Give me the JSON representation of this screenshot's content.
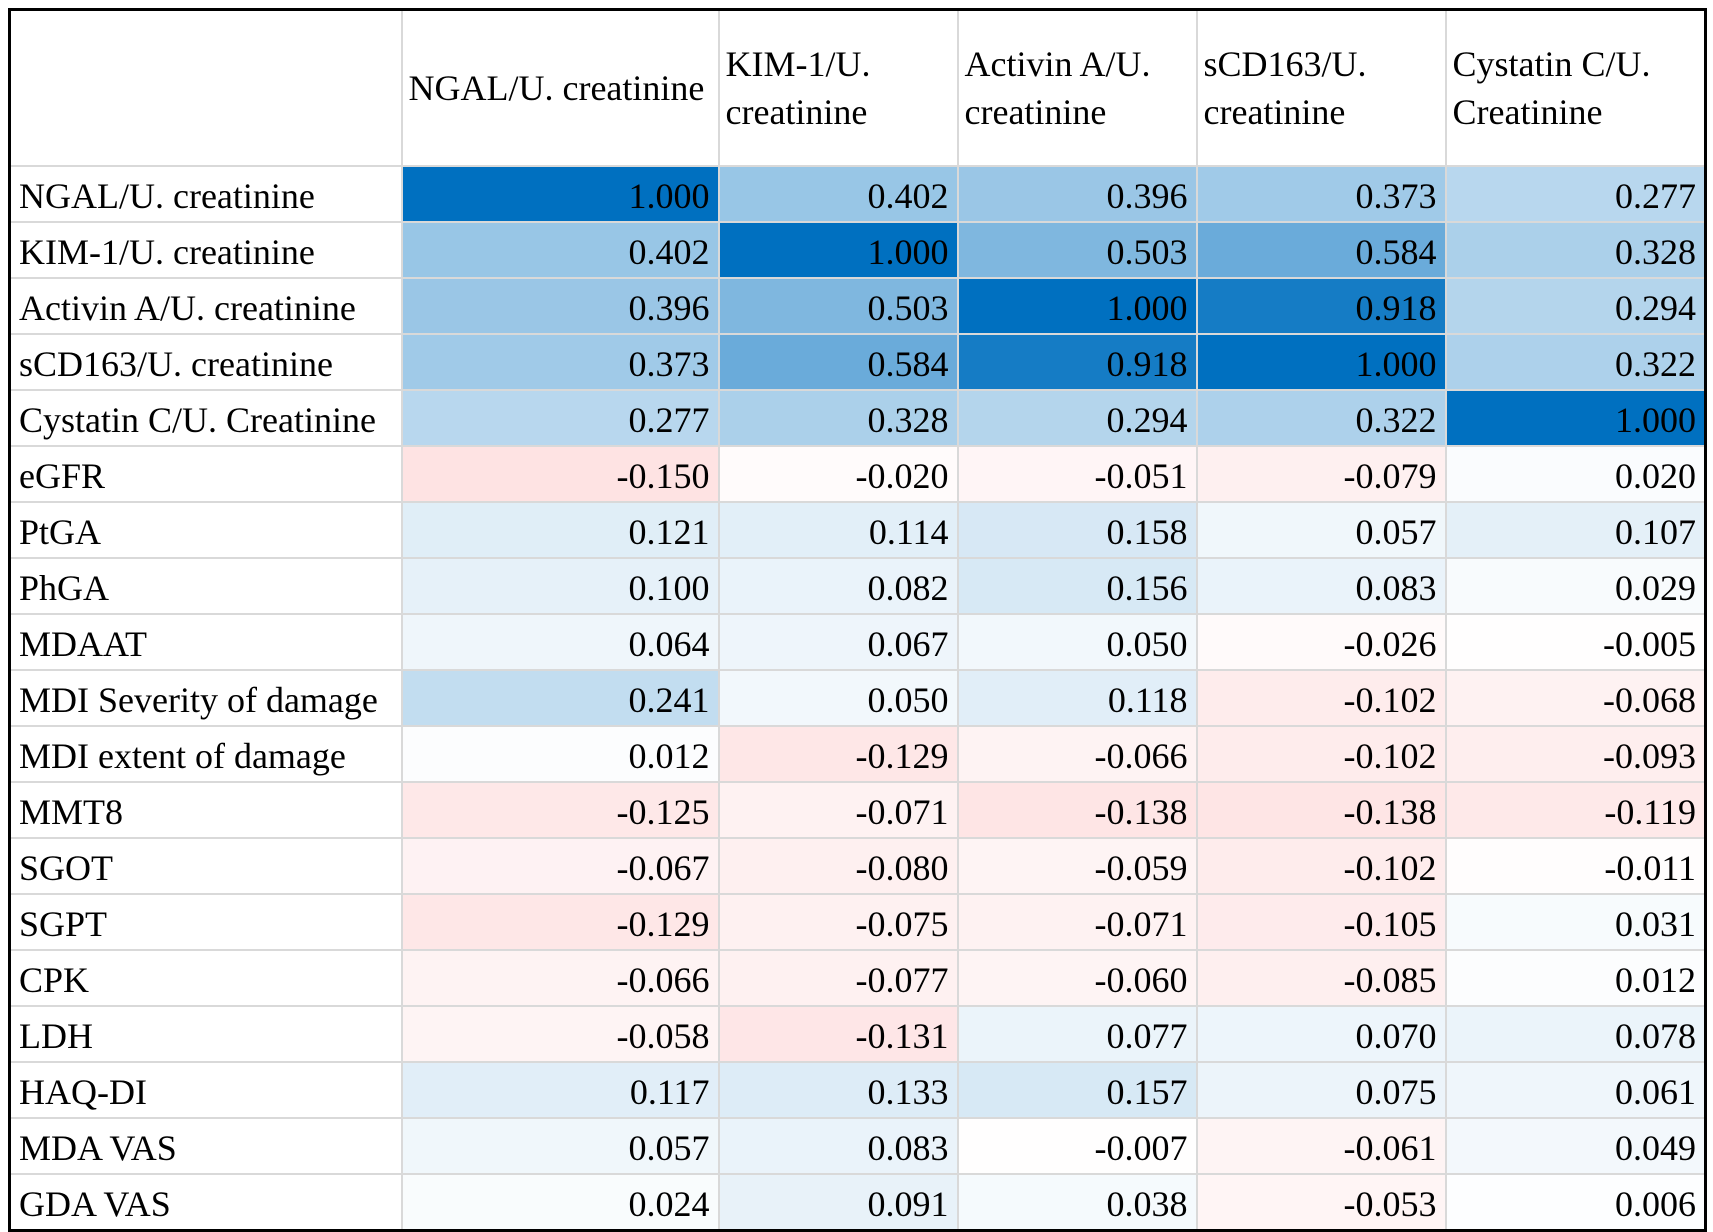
{
  "chart_data": {
    "type": "heatmap",
    "title": "",
    "xlabel": "",
    "ylabel": "",
    "columns": [
      "NGAL/U. creatinine",
      "KIM-1/U. creatinine",
      "Activin A/U. creatinine",
      "sCD163/U. creatinine",
      "Cystatin C/U. Creatinine"
    ],
    "rows": [
      {
        "label": "NGAL/U. creatinine",
        "values": [
          "1.000",
          "0.402",
          "0.396",
          "0.373",
          "0.277"
        ]
      },
      {
        "label": "KIM-1/U. creatinine",
        "values": [
          "0.402",
          "1.000",
          "0.503",
          "0.584",
          "0.328"
        ]
      },
      {
        "label": "Activin A/U. creatinine",
        "values": [
          "0.396",
          "0.503",
          "1.000",
          "0.918",
          "0.294"
        ]
      },
      {
        "label": "sCD163/U. creatinine",
        "values": [
          "0.373",
          "0.584",
          "0.918",
          "1.000",
          "0.322"
        ]
      },
      {
        "label": "Cystatin C/U. Creatinine",
        "values": [
          "0.277",
          "0.328",
          "0.294",
          "0.322",
          "1.000"
        ]
      },
      {
        "label": "eGFR",
        "values": [
          "-0.150",
          "-0.020",
          "-0.051",
          "-0.079",
          "0.020"
        ]
      },
      {
        "label": "PtGA",
        "values": [
          "0.121",
          "0.114",
          "0.158",
          "0.057",
          "0.107"
        ]
      },
      {
        "label": "PhGA",
        "values": [
          "0.100",
          "0.082",
          "0.156",
          "0.083",
          "0.029"
        ]
      },
      {
        "label": "MDAAT",
        "values": [
          "0.064",
          "0.067",
          "0.050",
          "-0.026",
          "-0.005"
        ]
      },
      {
        "label": "MDI Severity of damage",
        "values": [
          "0.241",
          "0.050",
          "0.118",
          "-0.102",
          "-0.068"
        ]
      },
      {
        "label": "MDI extent of damage",
        "values": [
          "0.012",
          "-0.129",
          "-0.066",
          "-0.102",
          "-0.093"
        ]
      },
      {
        "label": "MMT8",
        "values": [
          "-0.125",
          "-0.071",
          "-0.138",
          "-0.138",
          "-0.119"
        ]
      },
      {
        "label": "SGOT",
        "values": [
          "-0.067",
          "-0.080",
          "-0.059",
          "-0.102",
          "-0.011"
        ]
      },
      {
        "label": "SGPT",
        "values": [
          "-0.129",
          "-0.075",
          "-0.071",
          "-0.105",
          "0.031"
        ]
      },
      {
        "label": "CPK",
        "values": [
          "-0.066",
          "-0.077",
          "-0.060",
          "-0.085",
          "0.012"
        ]
      },
      {
        "label": "LDH",
        "values": [
          "-0.058",
          "-0.131",
          "0.077",
          "0.070",
          "0.078"
        ]
      },
      {
        "label": "HAQ-DI",
        "values": [
          "0.117",
          "0.133",
          "0.157",
          "0.075",
          "0.061"
        ]
      },
      {
        "label": "MDA VAS",
        "values": [
          "0.057",
          "0.083",
          "-0.007",
          "-0.061",
          "0.049"
        ]
      },
      {
        "label": "GDA VAS",
        "values": [
          "0.024",
          "0.091",
          "0.038",
          "-0.053",
          "0.006"
        ]
      }
    ],
    "color_scale": {
      "positive_max": "#0070c0",
      "neutral": "#ffffff",
      "negative_max": "#f8696b",
      "positive_domain_max": 1.0,
      "negative_domain_min": -0.8
    }
  }
}
